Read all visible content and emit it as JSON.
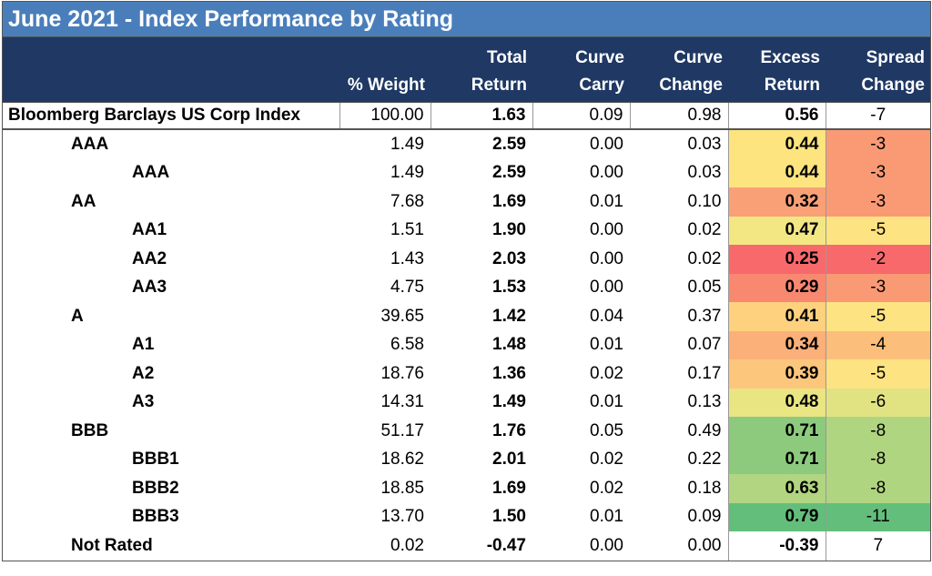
{
  "title": "June 2021 - Index Performance by Rating",
  "header": {
    "columns": [
      [
        "% Weight"
      ],
      [
        "Total",
        "Return"
      ],
      [
        "Curve",
        "Carry"
      ],
      [
        "Curve",
        "Change"
      ],
      [
        "Excess",
        "Return"
      ],
      [
        "Spread",
        "Change"
      ]
    ]
  },
  "index": {
    "name": "Bloomberg Barclays US Corp Index",
    "values": [
      "100.00",
      "1.63",
      "0.09",
      "0.98",
      "0.56",
      "-7"
    ],
    "excess_color": "#ffffff",
    "spread_color": "#ffffff"
  },
  "groups": [
    {
      "name": "AAA",
      "values": [
        "1.49",
        "2.59",
        "0.00",
        "0.03",
        "0.44",
        "-3"
      ],
      "excess_color": "#fde47f",
      "spread_color": "#fa9a75",
      "children": [
        {
          "name": "AAA",
          "values": [
            "1.49",
            "2.59",
            "0.00",
            "0.03",
            "0.44",
            "-3"
          ],
          "excess_color": "#fde47f",
          "spread_color": "#fa9a75"
        }
      ]
    },
    {
      "name": "AA",
      "values": [
        "7.68",
        "1.69",
        "0.01",
        "0.10",
        "0.32",
        "-3"
      ],
      "excess_color": "#f9a077",
      "spread_color": "#fa9a75",
      "children": [
        {
          "name": "AA1",
          "values": [
            "1.51",
            "1.90",
            "0.00",
            "0.02",
            "0.47",
            "-5"
          ],
          "excess_color": "#f3e784",
          "spread_color": "#fee382"
        },
        {
          "name": "AA2",
          "values": [
            "1.43",
            "2.03",
            "0.00",
            "0.02",
            "0.25",
            "-2"
          ],
          "excess_color": "#f8696b",
          "spread_color": "#f8696b"
        },
        {
          "name": "AA3",
          "values": [
            "4.75",
            "1.53",
            "0.00",
            "0.05",
            "0.29",
            "-3"
          ],
          "excess_color": "#f98870",
          "spread_color": "#fa9a75"
        }
      ]
    },
    {
      "name": "A",
      "values": [
        "39.65",
        "1.42",
        "0.04",
        "0.37",
        "0.41",
        "-5"
      ],
      "excess_color": "#fdd17e",
      "spread_color": "#fee382",
      "children": [
        {
          "name": "A1",
          "values": [
            "6.58",
            "1.48",
            "0.01",
            "0.07",
            "0.34",
            "-4"
          ],
          "excess_color": "#fbb079",
          "spread_color": "#fcbe7b"
        },
        {
          "name": "A2",
          "values": [
            "18.76",
            "1.36",
            "0.02",
            "0.17",
            "0.39",
            "-5"
          ],
          "excess_color": "#fcc67c",
          "spread_color": "#fee382"
        },
        {
          "name": "A3",
          "values": [
            "14.31",
            "1.49",
            "0.01",
            "0.13",
            "0.48",
            "-6"
          ],
          "excess_color": "#e9e582",
          "spread_color": "#e1e383"
        }
      ]
    },
    {
      "name": "BBB",
      "values": [
        "51.17",
        "1.76",
        "0.05",
        "0.49",
        "0.71",
        "-8"
      ],
      "excess_color": "#8dca7e",
      "spread_color": "#b0d580",
      "children": [
        {
          "name": "BBB1",
          "values": [
            "18.62",
            "2.01",
            "0.02",
            "0.22",
            "0.71",
            "-8"
          ],
          "excess_color": "#8dca7e",
          "spread_color": "#b0d580"
        },
        {
          "name": "BBB2",
          "values": [
            "18.85",
            "1.69",
            "0.02",
            "0.18",
            "0.63",
            "-8"
          ],
          "excess_color": "#b1d580",
          "spread_color": "#b0d580"
        },
        {
          "name": "BBB3",
          "values": [
            "13.70",
            "1.50",
            "0.01",
            "0.09",
            "0.79",
            "-11"
          ],
          "excess_color": "#63be7b",
          "spread_color": "#63be7b"
        }
      ]
    },
    {
      "name": "Not Rated",
      "values": [
        "0.02",
        "-0.47",
        "0.00",
        "0.00",
        "-0.39",
        "7"
      ],
      "excess_color": "#ffffff",
      "spread_color": "#ffffff",
      "children": []
    }
  ]
}
